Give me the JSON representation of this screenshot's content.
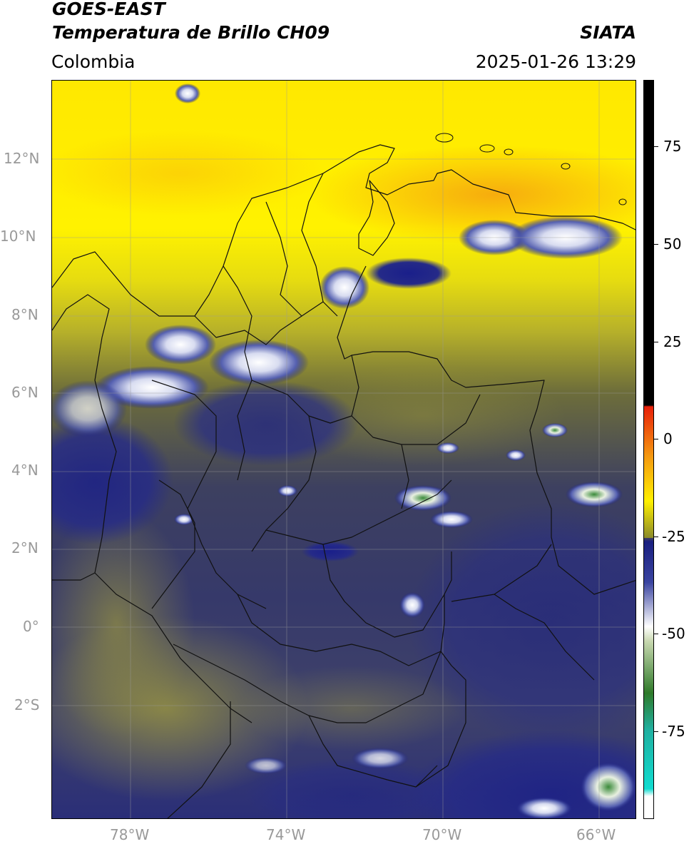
{
  "header": {
    "satellite": "GOES-EAST",
    "product": "Temperatura de Brillo CH09",
    "region": "Colombia",
    "agency": "SIATA",
    "datetime": "2025-01-26 13:29"
  },
  "map": {
    "lat_labels": [
      "12°N",
      "10°N",
      "8°N",
      "6°N",
      "4°N",
      "2°N",
      "0°",
      "2°S"
    ],
    "lon_labels": [
      "78°W",
      "74°W",
      "70°W",
      "66°W"
    ],
    "lat_range": [
      -5,
      14
    ],
    "lon_range": [
      -80,
      -65
    ],
    "grid": true
  },
  "colorbar": {
    "tick_labels": [
      "75",
      "50",
      "25",
      "0",
      "-25",
      "-50",
      "-75"
    ],
    "colors": {
      "warm_black": "#000000",
      "red": "#e8200a",
      "orange": "#f59a10",
      "yellow": "#fff000",
      "olive": "#8a8a2a",
      "navy": "#1a1f80",
      "white": "#ffffff",
      "green": "#2f7a2a",
      "cyan": "#10dcd0"
    }
  }
}
